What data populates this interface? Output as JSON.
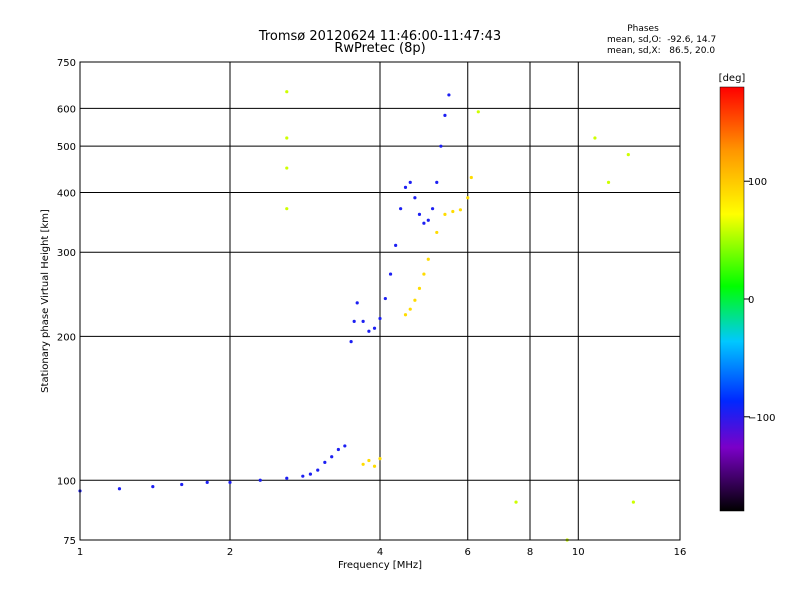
{
  "chart_data": {
    "type": "scatter",
    "title": "Tromsø 20120624 11:46:00-11:47:43",
    "subtitle": "RwPretec (8p)",
    "xlabel": "Frequency [MHz]",
    "ylabel": "Stationary phase Virtual Height [km]",
    "x_scale": "log",
    "y_scale": "log",
    "xlim": [
      1,
      16
    ],
    "ylim": [
      75,
      750
    ],
    "x_ticks": [
      1,
      2,
      4,
      6,
      8,
      10,
      16
    ],
    "y_ticks": [
      75,
      100,
      200,
      300,
      400,
      500,
      600,
      750
    ],
    "grid": true,
    "stats": {
      "title": "Phases",
      "line_o": "mean, sd,O:  -92.6, 14.7",
      "line_x": "mean, sd,X:   86.5, 20.0"
    },
    "colorbar": {
      "label": "[deg]",
      "range": [
        -180,
        180
      ],
      "ticks": [
        {
          "value": 100,
          "label": "100"
        },
        {
          "value": 0,
          "label": "0"
        },
        {
          "value": -100,
          "label": "−100"
        }
      ]
    },
    "clusters": [
      {
        "name": "low_o",
        "phase": -95,
        "points": [
          [
            1.0,
            95
          ],
          [
            1.2,
            96
          ],
          [
            1.4,
            97
          ],
          [
            1.6,
            98
          ],
          [
            1.8,
            99
          ],
          [
            2.0,
            99
          ],
          [
            2.3,
            100
          ],
          [
            2.6,
            101
          ],
          [
            2.9,
            103
          ]
        ]
      },
      {
        "name": "e_cusp_o",
        "phase": -95,
        "points": [
          [
            2.8,
            102
          ],
          [
            3.0,
            105
          ],
          [
            3.1,
            109
          ],
          [
            3.2,
            112
          ],
          [
            3.3,
            116
          ],
          [
            3.4,
            118
          ]
        ]
      },
      {
        "name": "f1_o",
        "phase": -95,
        "points": [
          [
            3.5,
            195
          ],
          [
            3.55,
            215
          ],
          [
            3.6,
            235
          ],
          [
            3.7,
            215
          ],
          [
            3.8,
            205
          ],
          [
            3.9,
            208
          ],
          [
            4.0,
            218
          ],
          [
            4.1,
            240
          ],
          [
            4.2,
            270
          ],
          [
            4.3,
            310
          ],
          [
            4.4,
            370
          ],
          [
            4.5,
            410
          ],
          [
            4.6,
            420
          ],
          [
            4.7,
            390
          ],
          [
            4.8,
            360
          ],
          [
            4.9,
            345
          ],
          [
            5.0,
            350
          ],
          [
            5.1,
            370
          ],
          [
            5.2,
            420
          ],
          [
            5.3,
            500
          ],
          [
            5.4,
            580
          ],
          [
            5.5,
            640
          ]
        ]
      },
      {
        "name": "f_x",
        "phase": 90,
        "points": [
          [
            4.5,
            222
          ],
          [
            4.6,
            228
          ],
          [
            4.7,
            238
          ],
          [
            4.8,
            252
          ],
          [
            4.9,
            270
          ],
          [
            5.0,
            290
          ],
          [
            5.2,
            330
          ],
          [
            5.4,
            360
          ],
          [
            5.6,
            365
          ],
          [
            5.8,
            368
          ],
          [
            6.0,
            390
          ],
          [
            6.1,
            430
          ]
        ]
      },
      {
        "name": "e_x",
        "phase": 90,
        "points": [
          [
            3.7,
            108
          ],
          [
            3.8,
            110
          ],
          [
            3.9,
            107
          ],
          [
            4.0,
            111
          ]
        ]
      },
      {
        "name": "scattered",
        "phase": 60,
        "points": [
          [
            2.6,
            650
          ],
          [
            2.6,
            520
          ],
          [
            2.6,
            450
          ],
          [
            2.6,
            370
          ],
          [
            6.3,
            590
          ],
          [
            7.5,
            90
          ],
          [
            9.5,
            75
          ],
          [
            10.8,
            520
          ],
          [
            11.5,
            420
          ],
          [
            12.6,
            480
          ],
          [
            12.9,
            90
          ]
        ]
      }
    ]
  }
}
